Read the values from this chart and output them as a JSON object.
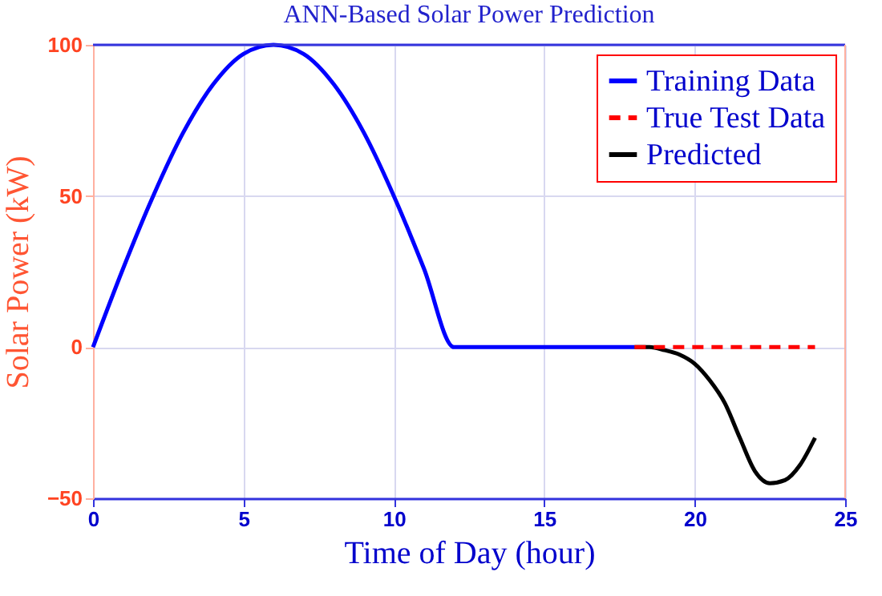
{
  "chart_data": {
    "type": "line",
    "title": "ANN-Based Solar Power Prediction",
    "xlabel": "Time of Day (hour)",
    "ylabel": "Solar Power (kW)",
    "xlim": [
      0,
      25
    ],
    "xticks": [
      0,
      5,
      10,
      15,
      20,
      25
    ],
    "ylim": [
      -50,
      100
    ],
    "yticks": [
      -50,
      0,
      50,
      100
    ],
    "grid": true,
    "legend": "top right",
    "marker": "none",
    "series": [
      {
        "name": "Training Data",
        "color": "#0000ff",
        "line_style": "solid",
        "x": [
          0,
          1,
          2,
          3,
          4,
          5,
          6,
          7,
          8,
          9,
          10,
          11,
          12,
          13,
          14,
          15,
          16,
          17,
          18
        ],
        "values": [
          0,
          26,
          50,
          71,
          87,
          97,
          100,
          97,
          87,
          71,
          50,
          26,
          0,
          0,
          0,
          0,
          0,
          0,
          0
        ]
      },
      {
        "name": "True Test Data",
        "color": "#ff0000",
        "line_style": "dashed",
        "x": [
          18,
          19,
          20,
          21,
          22,
          23,
          24
        ],
        "values": [
          0,
          0,
          0,
          0,
          0,
          0,
          0
        ]
      },
      {
        "name": "Predicted",
        "color": "#000000",
        "line_style": "solid",
        "x": [
          18,
          18.5,
          19,
          19.5,
          20,
          20.5,
          21,
          21.5,
          22,
          22.5,
          23,
          23.5,
          24
        ],
        "values": [
          0,
          0,
          -1,
          -2.5,
          -5.5,
          -11,
          -18.5,
          -30,
          -41,
          -45,
          -44,
          -39,
          -30
        ]
      }
    ]
  }
}
